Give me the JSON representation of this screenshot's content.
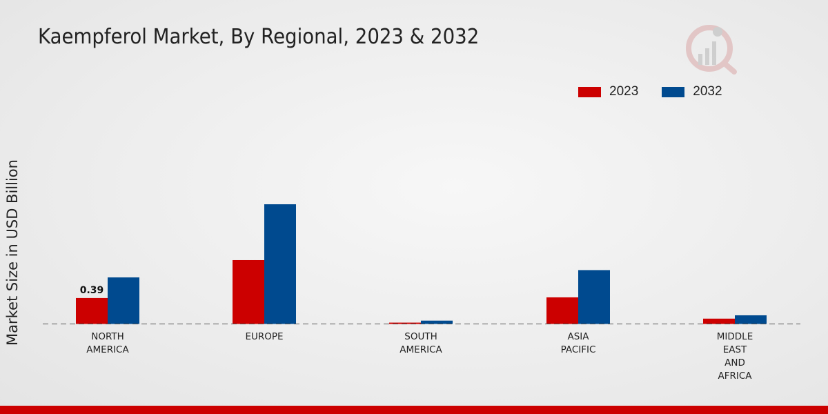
{
  "chart_data": {
    "type": "bar",
    "title": "Kaempferol Market, By Regional, 2023 & 2032",
    "xlabel": "",
    "ylabel": "Market Size in USD Billion",
    "categories": [
      [
        "NORTH",
        "AMERICA"
      ],
      [
        "EUROPE"
      ],
      [
        "SOUTH",
        "AMERICA"
      ],
      [
        "ASIA",
        "PACIFIC"
      ],
      [
        "MIDDLE",
        "EAST",
        "AND",
        "AFRICA"
      ]
    ],
    "series": [
      {
        "name": "2023",
        "color": "#cc0000",
        "values": [
          0.39,
          0.96,
          0.02,
          0.4,
          0.08
        ]
      },
      {
        "name": "2032",
        "color": "#004a8f",
        "values": [
          0.7,
          1.8,
          0.05,
          0.81,
          0.13
        ]
      }
    ],
    "data_labels": [
      {
        "series": 0,
        "index": 0,
        "text": "0.39"
      }
    ],
    "ylim": [
      0,
      2.2
    ],
    "grid": false,
    "legend_position": "top-right"
  }
}
